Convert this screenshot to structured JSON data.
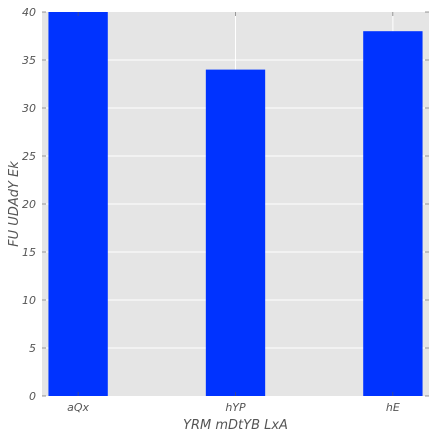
{
  "chart_data": {
    "type": "bar",
    "title": "",
    "xlabel": "YRM mDtYB LxA",
    "ylabel": "FU UDAdY Ek",
    "categories": [
      "aQx",
      "hYP",
      "hE"
    ],
    "values": [
      40,
      34,
      38
    ],
    "ylim": [
      0,
      40
    ],
    "yticks": [
      "0",
      "5",
      "10",
      "15",
      "20",
      "25",
      "30",
      "35",
      "40"
    ],
    "grid": true,
    "legend": "none",
    "bar_color": "#0033ff",
    "plot_background": "#e5e5e5",
    "grid_color": "#ffffff"
  }
}
